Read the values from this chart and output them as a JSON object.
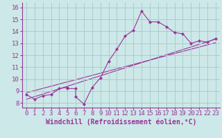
{
  "title": "",
  "xlabel": "Windchill (Refroidissement éolien,°C)",
  "ylabel": "",
  "bg_color": "#cde8e8",
  "line_color": "#993399",
  "grid_color": "#aacccc",
  "xlim": [
    -0.5,
    23.5
  ],
  "ylim": [
    7.6,
    16.4
  ],
  "xticks": [
    0,
    1,
    2,
    3,
    4,
    5,
    6,
    7,
    8,
    9,
    10,
    11,
    12,
    13,
    14,
    15,
    16,
    17,
    18,
    19,
    20,
    21,
    22,
    23
  ],
  "yticks": [
    8,
    9,
    10,
    11,
    12,
    13,
    14,
    15,
    16
  ],
  "data_x": [
    0,
    1,
    2,
    3,
    4,
    5,
    5,
    6,
    6,
    7,
    8,
    9,
    10,
    11,
    12,
    13,
    14,
    15,
    16,
    17,
    18,
    19,
    20,
    21,
    22,
    23
  ],
  "data_y": [
    8.7,
    8.3,
    8.6,
    8.7,
    9.2,
    9.3,
    9.2,
    9.2,
    8.5,
    7.9,
    9.3,
    10.1,
    11.5,
    12.5,
    13.6,
    14.1,
    15.7,
    14.8,
    14.8,
    14.4,
    13.9,
    13.8,
    13.0,
    13.2,
    13.1,
    13.4
  ],
  "line1_x": [
    0,
    23
  ],
  "line1_y": [
    8.3,
    13.35
  ],
  "line2_x": [
    0,
    23
  ],
  "line2_y": [
    8.85,
    13.05
  ],
  "font_size": 6.5
}
